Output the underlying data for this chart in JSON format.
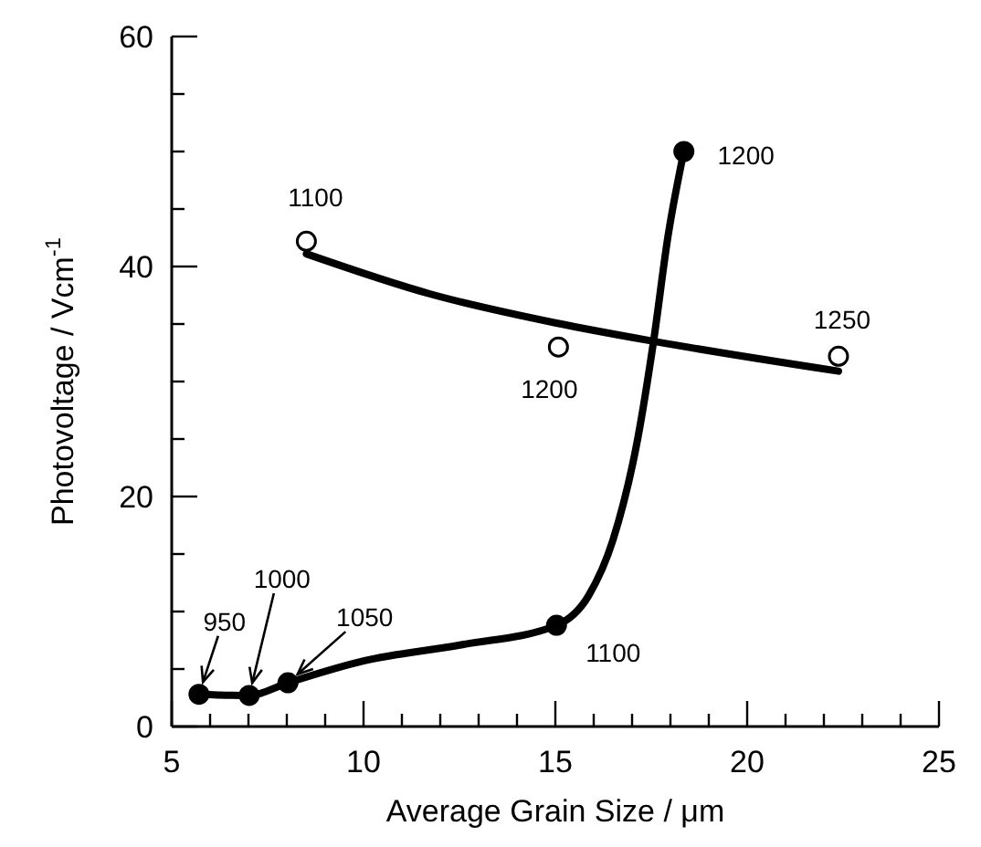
{
  "chart_data": {
    "type": "scatter",
    "xlabel": "Average Grain Size / μm",
    "ylabel": "Photovoltage / Vcm$^{-1}$",
    "xlim": [
      5,
      25
    ],
    "ylim": [
      0,
      60
    ],
    "xticks": [
      5,
      {
        "value": 6,
        "label": null
      },
      {
        "value": 7,
        "label": null
      },
      {
        "value": 8,
        "label": null
      },
      {
        "value": 9,
        "label": null
      },
      10,
      {
        "value": 11,
        "label": null
      },
      {
        "value": 12,
        "label": null
      },
      {
        "value": 13,
        "label": null
      },
      {
        "value": 14,
        "label": null
      },
      15,
      {
        "value": 16,
        "label": null
      },
      {
        "value": 17,
        "label": null
      },
      {
        "value": 18,
        "label": null
      },
      {
        "value": 19,
        "label": null
      },
      20,
      {
        "value": 21,
        "label": null
      },
      {
        "value": 22,
        "label": null
      },
      {
        "value": 23,
        "label": null
      },
      {
        "value": 24,
        "label": null
      },
      25
    ],
    "yticks": [
      0,
      {
        "value": 5,
        "label": null
      },
      {
        "value": 10,
        "label": null
      },
      {
        "value": 15,
        "label": null
      },
      20,
      {
        "value": 25,
        "label": null
      },
      {
        "value": 30,
        "label": null
      },
      {
        "value": 35,
        "label": null
      },
      40,
      {
        "value": 45,
        "label": null
      },
      {
        "value": 50,
        "label": null
      },
      {
        "value": 55,
        "label": null
      },
      60
    ],
    "grid": false,
    "series": [
      {
        "type": "line",
        "color": "#000000",
        "marker": "none",
        "x": [
          5.71,
          7.02,
          8.03,
          10,
          12.54,
          15.03,
          15.87,
          16.5,
          17.14,
          17.56,
          17.94,
          18.35
        ],
        "values": [
          2.8,
          2.7,
          3.8,
          5.7,
          7.1,
          8.8,
          11.4,
          16.2,
          24.9,
          33.5,
          42.7,
          50
        ]
      },
      {
        "color": "#000000",
        "marker": "circle",
        "x": [
          5.71,
          7.02,
          8.03,
          15.03,
          18.35
        ],
        "values": [
          2.8,
          2.7,
          3.8,
          8.8,
          50
        ]
      },
      {
        "type": "line",
        "color": "#000000",
        "marker": "none",
        "x": [
          8.51,
          11.75,
          15,
          17.56,
          22.38
        ],
        "values": [
          41.1,
          37.6,
          35.1,
          33.5,
          30.9
        ]
      },
      {
        "color": "#ffffff",
        "marker": "circle",
        "x": [
          8.51,
          15.08,
          22.38
        ],
        "values": [
          42.2,
          33,
          32.2
        ]
      }
    ],
    "annotations": [
      {
        "text": "950",
        "x": 5.71,
        "y": 2.8
      },
      {
        "text": "1000",
        "x": 7.02,
        "y": 2.7
      },
      {
        "text": "1050",
        "x": 8.03,
        "y": 3.8
      },
      {
        "text": "1100",
        "x": 15.03,
        "y": 8.8
      },
      {
        "text": "1200",
        "x": 18.35,
        "y": 50
      },
      {
        "text": "1100",
        "x": 8.51,
        "y": 42.2
      },
      {
        "text": "1200",
        "x": 15.08,
        "y": 33
      },
      {
        "text": "1250",
        "x": 22.38,
        "y": 32.2
      }
    ]
  }
}
